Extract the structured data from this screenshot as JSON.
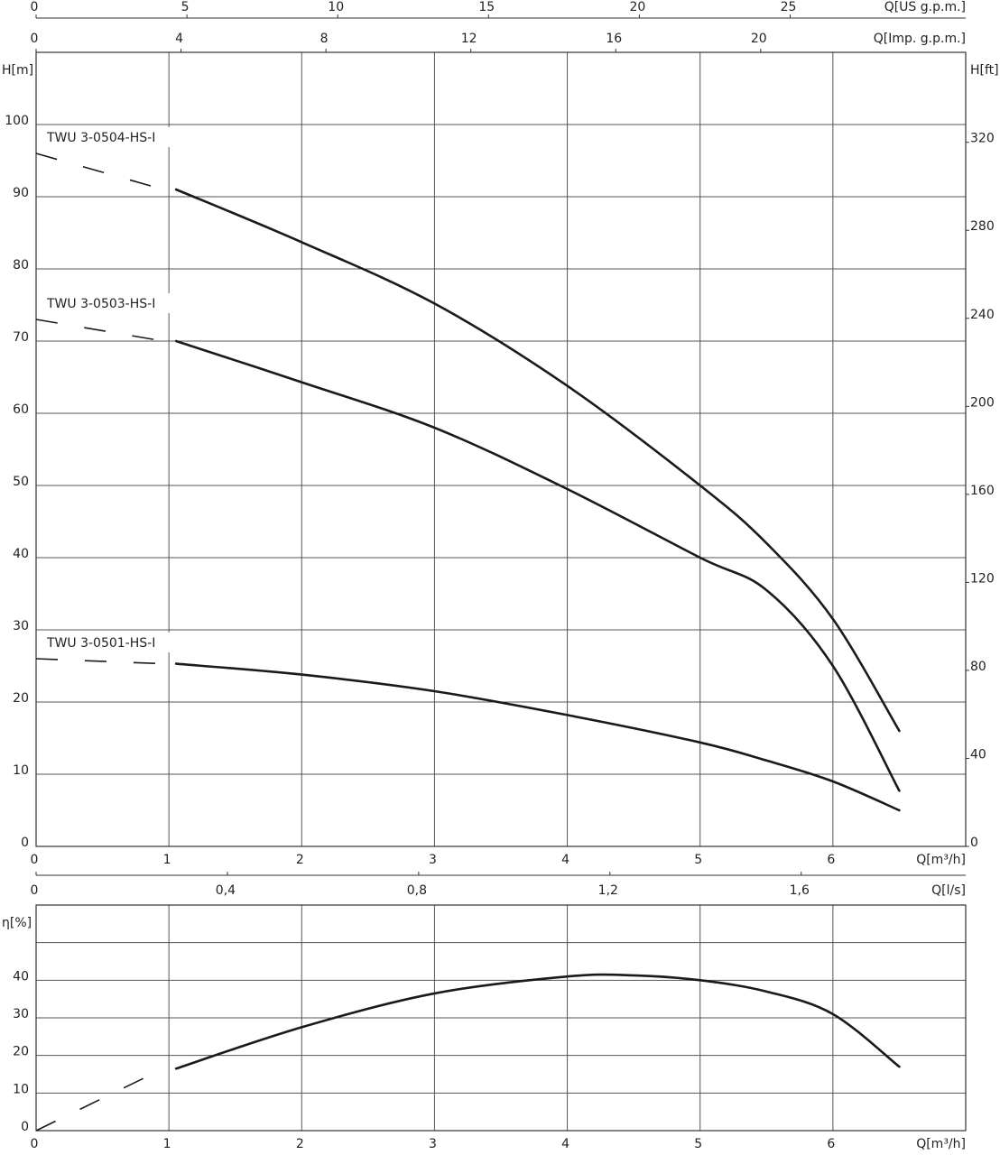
{
  "chart_data": [
    {
      "type": "line",
      "xlabel": "Q[m³/h]",
      "xlim": [
        0,
        7
      ],
      "xticks": [
        0,
        1,
        2,
        3,
        4,
        5,
        6
      ],
      "ylabel": "H[m]",
      "ylim": [
        0,
        110
      ],
      "yticks": [
        0,
        10,
        20,
        30,
        40,
        50,
        60,
        70,
        80,
        90,
        100
      ],
      "y2label": "H[ft]",
      "y2lim": [
        0,
        360.89
      ],
      "y2ticks": [
        0,
        40,
        80,
        120,
        160,
        200,
        240,
        280,
        320
      ],
      "grid": true,
      "top_axes": [
        {
          "label": "Q[US g.p.m.]",
          "xlim": [
            0,
            30.82
          ],
          "xticks": [
            0,
            5,
            10,
            15,
            20,
            25
          ]
        },
        {
          "label": "Q[Imp. g.p.m.]",
          "xlim": [
            0,
            25.66
          ],
          "xticks": [
            0,
            4,
            8,
            12,
            16,
            20
          ]
        }
      ],
      "series": [
        {
          "name": "TWU 3-0504-HS-I",
          "color": "#1a1a1a",
          "x": [
            0,
            1,
            2,
            3,
            4,
            5,
            5.5,
            6,
            6.5
          ],
          "values": [
            96,
            91,
            83.7,
            75.2,
            63.8,
            50,
            42,
            31.5,
            16
          ]
        },
        {
          "name": "TWU 3-0503-HS-I",
          "color": "#1a1a1a",
          "x": [
            0,
            1,
            2,
            3,
            4,
            5,
            5.5,
            6,
            6.5
          ],
          "values": [
            73,
            70,
            64.3,
            58,
            49.5,
            40,
            35.5,
            25,
            7.7
          ]
        },
        {
          "name": "TWU 3-0501-HS-I",
          "color": "#1a1a1a",
          "x": [
            0,
            1,
            2,
            3,
            4,
            5,
            5.5,
            6,
            6.5
          ],
          "values": [
            26,
            25.3,
            23.8,
            21.5,
            18.2,
            14.4,
            11.9,
            9,
            5
          ]
        }
      ]
    },
    {
      "type": "line",
      "xlabel": "Q[m³/h]",
      "xlim": [
        0,
        7
      ],
      "xticks": [
        0,
        1,
        2,
        3,
        4,
        5,
        6
      ],
      "ylabel": "η[%]",
      "ylim": [
        0,
        60
      ],
      "yticks": [
        0,
        10,
        20,
        30,
        40
      ],
      "ygrid": [
        10,
        20,
        30,
        40,
        50
      ],
      "grid": true,
      "top_axes": [
        {
          "label": "Q[l/s]",
          "xlim": [
            0,
            1.944
          ],
          "xticks": [
            0,
            {
              "value": 0.4,
              "label": "0,4"
            },
            {
              "value": 0.8,
              "label": "0,8"
            },
            {
              "value": 1.2,
              "label": "1,2"
            },
            {
              "value": 1.6,
              "label": "1,6"
            }
          ]
        }
      ],
      "series": [
        {
          "color": "#1a1a1a",
          "x": [
            0,
            1,
            2,
            3,
            4,
            4.5,
            5,
            5.5,
            6,
            6.5
          ],
          "values": [
            0,
            16.5,
            27.5,
            36.5,
            41,
            41.3,
            40,
            37,
            31,
            17
          ]
        }
      ]
    }
  ]
}
